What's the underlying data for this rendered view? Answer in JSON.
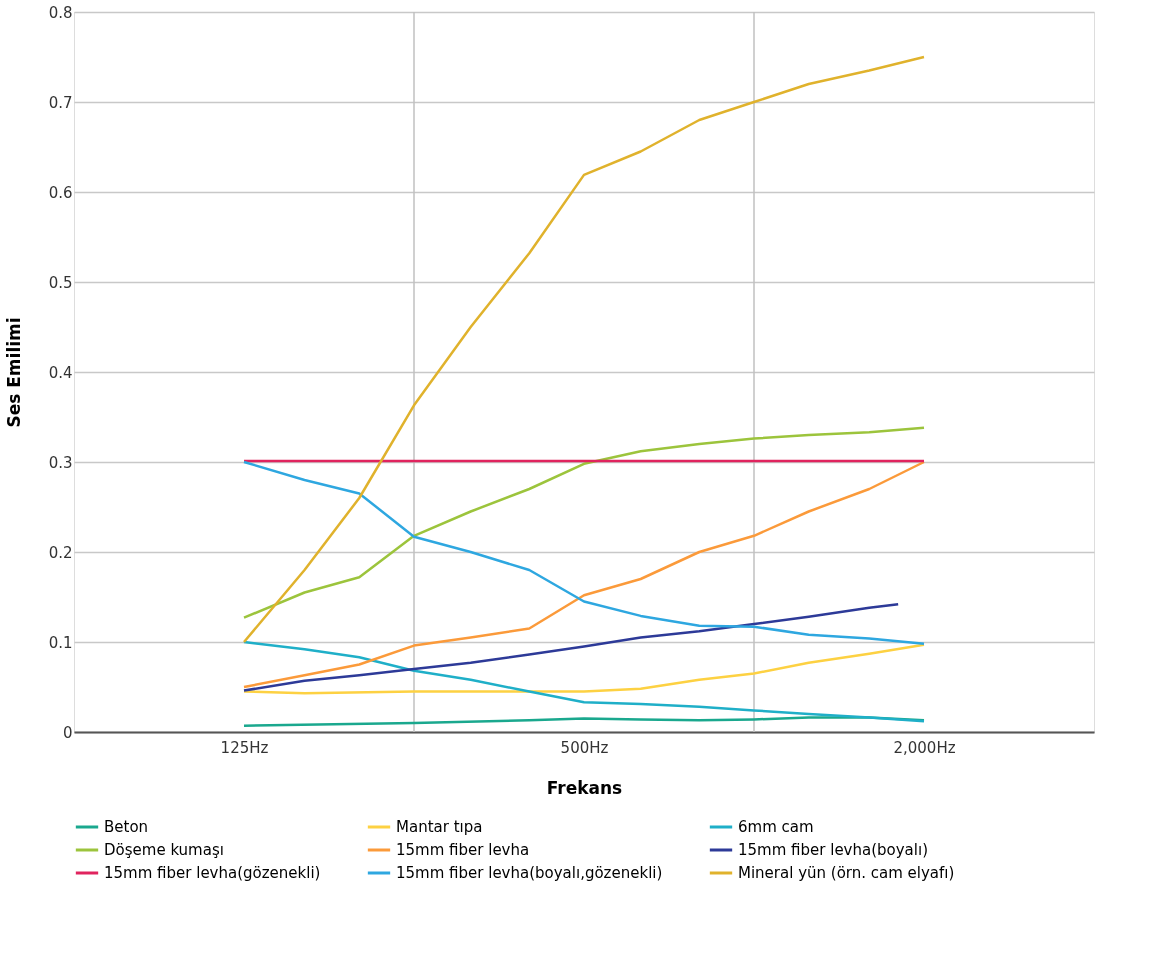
{
  "chart_data": {
    "type": "line",
    "xlabel": "Frekans",
    "ylabel": "Ses Emilimi",
    "log": "x",
    "grid": true,
    "legend": "bottom",
    "line_style": "solid",
    "marker": "none",
    "xlim": [
      62.5,
      4000
    ],
    "xticks": [
      {
        "value": 125,
        "label": "125Hz"
      },
      {
        "value": 250,
        "label": null
      },
      {
        "value": 500,
        "label": "500Hz"
      },
      {
        "value": 1000,
        "label": null
      },
      {
        "value": 2000,
        "label": "2,000Hz"
      }
    ],
    "ylim": [
      0,
      0.8
    ],
    "yticks": [
      0,
      0.1,
      0.2,
      0.3,
      0.4,
      0.5,
      0.6,
      0.7,
      0.8
    ],
    "series": [
      {
        "name": "Beton",
        "color": "#1aa88e",
        "x": [
          125,
          250,
          400,
          500,
          630,
          800,
          1000,
          1250,
          1600,
          2000
        ],
        "values": [
          0.007,
          0.01,
          0.013,
          0.015,
          0.014,
          0.013,
          0.014,
          0.016,
          0.016,
          0.013
        ]
      },
      {
        "name": "Mantar tıpa",
        "color": "#fdd142",
        "x": [
          125,
          160,
          250,
          500,
          630,
          800,
          1000,
          1250,
          1600,
          2000
        ],
        "values": [
          0.045,
          0.043,
          0.045,
          0.045,
          0.048,
          0.058,
          0.065,
          0.077,
          0.087,
          0.097
        ]
      },
      {
        "name": "6mm cam",
        "color": "#1fafc8",
        "x": [
          125,
          160,
          200,
          250,
          315,
          400,
          500,
          630,
          800,
          1000,
          1250,
          1600,
          2000
        ],
        "values": [
          0.1,
          0.092,
          0.083,
          0.068,
          0.058,
          0.045,
          0.033,
          0.031,
          0.028,
          0.024,
          0.02,
          0.016,
          0.012
        ]
      },
      {
        "name": "Döşeme kumaşı",
        "color": "#9cc43c",
        "x": [
          125,
          160,
          200,
          250,
          315,
          400,
          500,
          630,
          800,
          1000,
          1250,
          1600,
          2000
        ],
        "values": [
          0.127,
          0.155,
          0.172,
          0.218,
          0.245,
          0.27,
          0.298,
          0.312,
          0.32,
          0.326,
          0.33,
          0.333,
          0.338
        ]
      },
      {
        "name": "15mm fiber levha",
        "color": "#fb9a3a",
        "x": [
          125,
          160,
          200,
          250,
          315,
          400,
          500,
          630,
          800,
          1000,
          1250,
          1600,
          2000
        ],
        "values": [
          0.05,
          0.063,
          0.075,
          0.096,
          0.105,
          0.115,
          0.152,
          0.17,
          0.2,
          0.218,
          0.245,
          0.27,
          0.3
        ]
      },
      {
        "name": "15mm fiber levha(boyalı)",
        "color": "#2d3a98",
        "x": [
          125,
          160,
          200,
          250,
          315,
          400,
          500,
          630,
          800,
          1000,
          1250,
          1600,
          1800
        ],
        "values": [
          0.046,
          0.057,
          0.063,
          0.07,
          0.077,
          0.086,
          0.095,
          0.105,
          0.112,
          0.12,
          0.128,
          0.138,
          0.142
        ]
      },
      {
        "name": "15mm fiber levha(gözenekli)",
        "color": "#e0245e",
        "x": [
          125,
          2000
        ],
        "values": [
          0.301,
          0.301
        ]
      },
      {
        "name": "15mm fiber levha(boyalı,gözenekli)",
        "color": "#2ea7e0",
        "x": [
          125,
          160,
          200,
          250,
          315,
          400,
          500,
          630,
          800,
          1000,
          1250,
          1600,
          2000
        ],
        "values": [
          0.3,
          0.28,
          0.265,
          0.217,
          0.2,
          0.18,
          0.145,
          0.129,
          0.118,
          0.117,
          0.108,
          0.104,
          0.098
        ]
      },
      {
        "name": "Mineral yün (örn. cam elyafı)",
        "color": "#e0b22c",
        "x": [
          125,
          160,
          200,
          250,
          315,
          400,
          500,
          630,
          800,
          1000,
          1250,
          1600,
          2000
        ],
        "values": [
          0.1,
          0.18,
          0.26,
          0.363,
          0.45,
          0.532,
          0.619,
          0.645,
          0.68,
          0.7,
          0.72,
          0.735,
          0.75
        ]
      }
    ]
  }
}
